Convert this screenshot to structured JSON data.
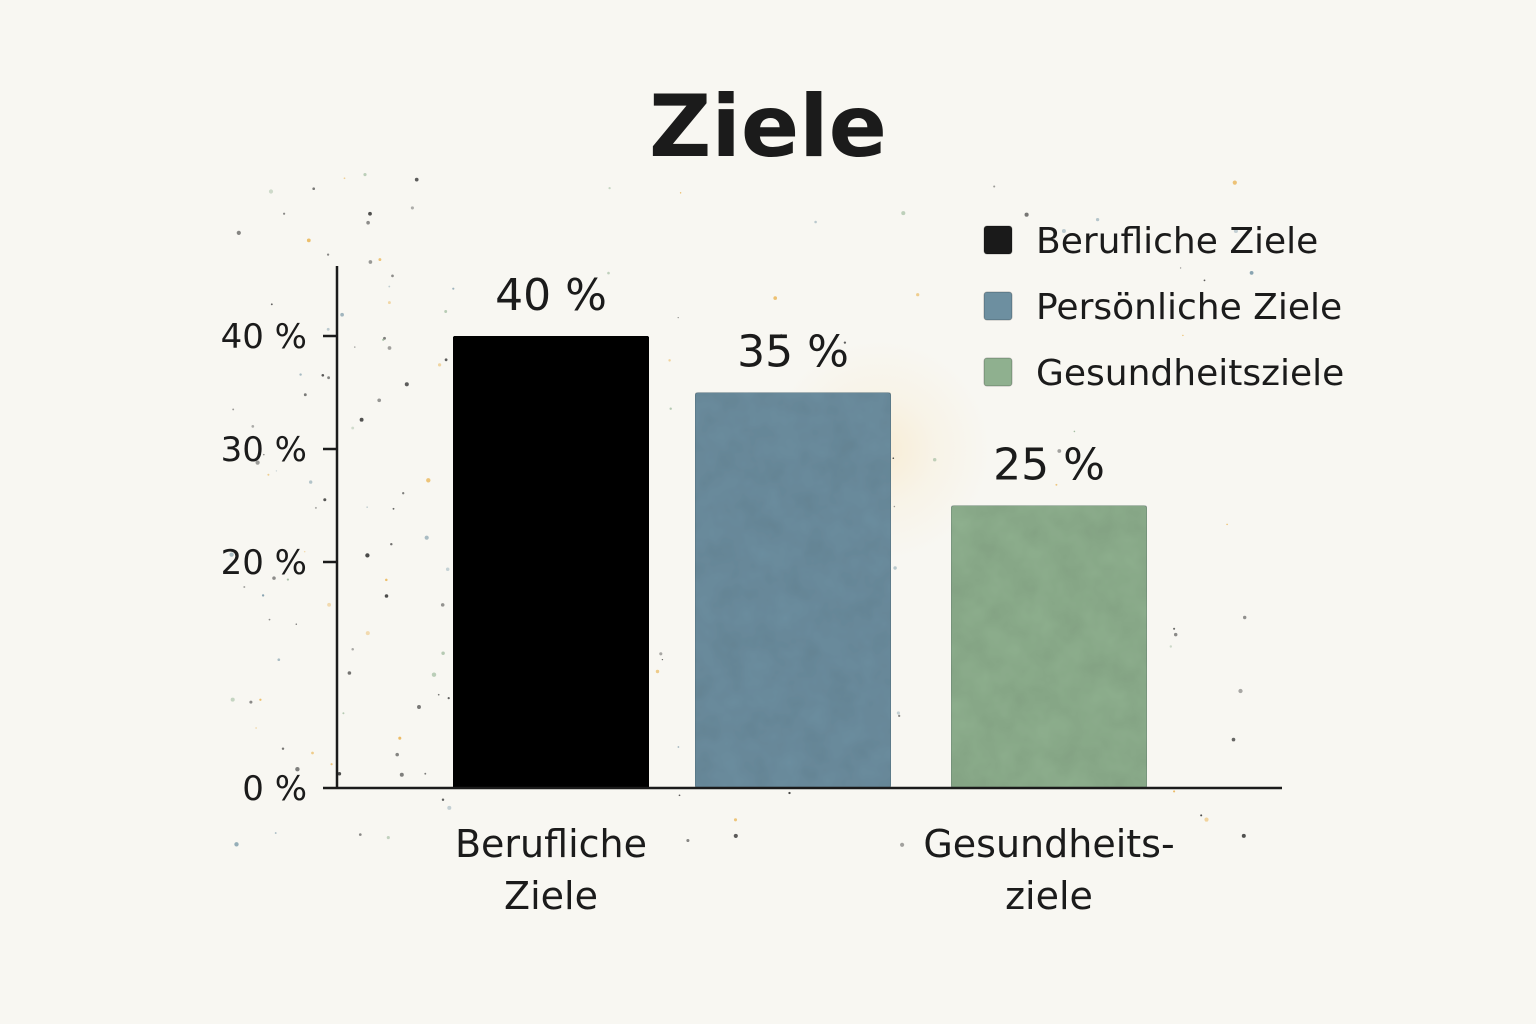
{
  "chart_data": {
    "type": "bar",
    "title": "Ziele",
    "xlabel": "",
    "ylabel": "",
    "ylim": [
      0,
      40
    ],
    "yticks": [
      {
        "value": 0,
        "label": "0 %"
      },
      {
        "value": 20,
        "label": "20 %"
      },
      {
        "value": 30,
        "label": "30 %"
      },
      {
        "value": 40,
        "label": "40 %"
      }
    ],
    "grid": false,
    "legend_position": "top-right",
    "categories": [
      {
        "name": "Berufliche Ziele",
        "label_lines": [
          "Berufliche",
          "Ziele"
        ]
      },
      {
        "name": "Persönliche Ziele",
        "label_lines": []
      },
      {
        "name": "Gesundheitsziele",
        "label_lines": [
          "Gesundheits-",
          "ziele"
        ]
      }
    ],
    "values": [
      40,
      35,
      25
    ],
    "value_labels": [
      "40 %",
      "35 %",
      "25 %"
    ],
    "colors": [
      "#101010",
      "#6d8fa0",
      "#8fb08f"
    ],
    "legend": [
      {
        "label": "Berufliche Ziele",
        "color": "#1a1a1a"
      },
      {
        "label": "Persönliche Ziele",
        "color": "#6d8fa0"
      },
      {
        "label": "Gesundheitsziele",
        "color": "#8fb08f"
      }
    ]
  }
}
